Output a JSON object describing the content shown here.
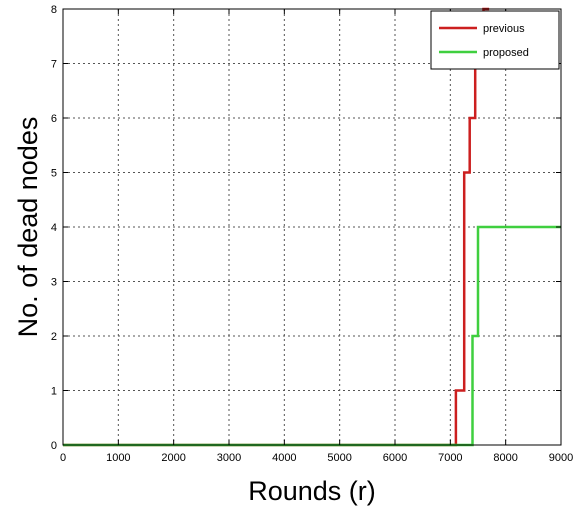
{
  "chart_data": {
    "type": "line",
    "title": "",
    "xlabel": "Rounds (r)",
    "ylabel": "No. of dead nodes",
    "xlim": [
      0,
      9000
    ],
    "ylim": [
      0,
      8
    ],
    "x_ticks": [
      "0",
      "1000",
      "2000",
      "3000",
      "4000",
      "5000",
      "6000",
      "7000",
      "8000",
      "9000"
    ],
    "y_ticks": [
      "0",
      "1",
      "2",
      "3",
      "4",
      "5",
      "6",
      "7",
      "8"
    ],
    "grid": true,
    "legend_position": "top-right",
    "step": true,
    "series": [
      {
        "name": "previous",
        "color": "#cc1f1f",
        "x": [
          0,
          7100,
          7100,
          7250,
          7250,
          7350,
          7350,
          7450,
          7450,
          7600,
          7600,
          7700
        ],
        "y": [
          0,
          0,
          1,
          1,
          5,
          5,
          6,
          6,
          7,
          7,
          8,
          8
        ]
      },
      {
        "name": "proposed",
        "color": "#3fcf3f",
        "x": [
          0,
          7400,
          7400,
          7500,
          7500,
          9000
        ],
        "y": [
          0,
          0,
          2,
          2,
          4,
          4
        ]
      }
    ]
  }
}
